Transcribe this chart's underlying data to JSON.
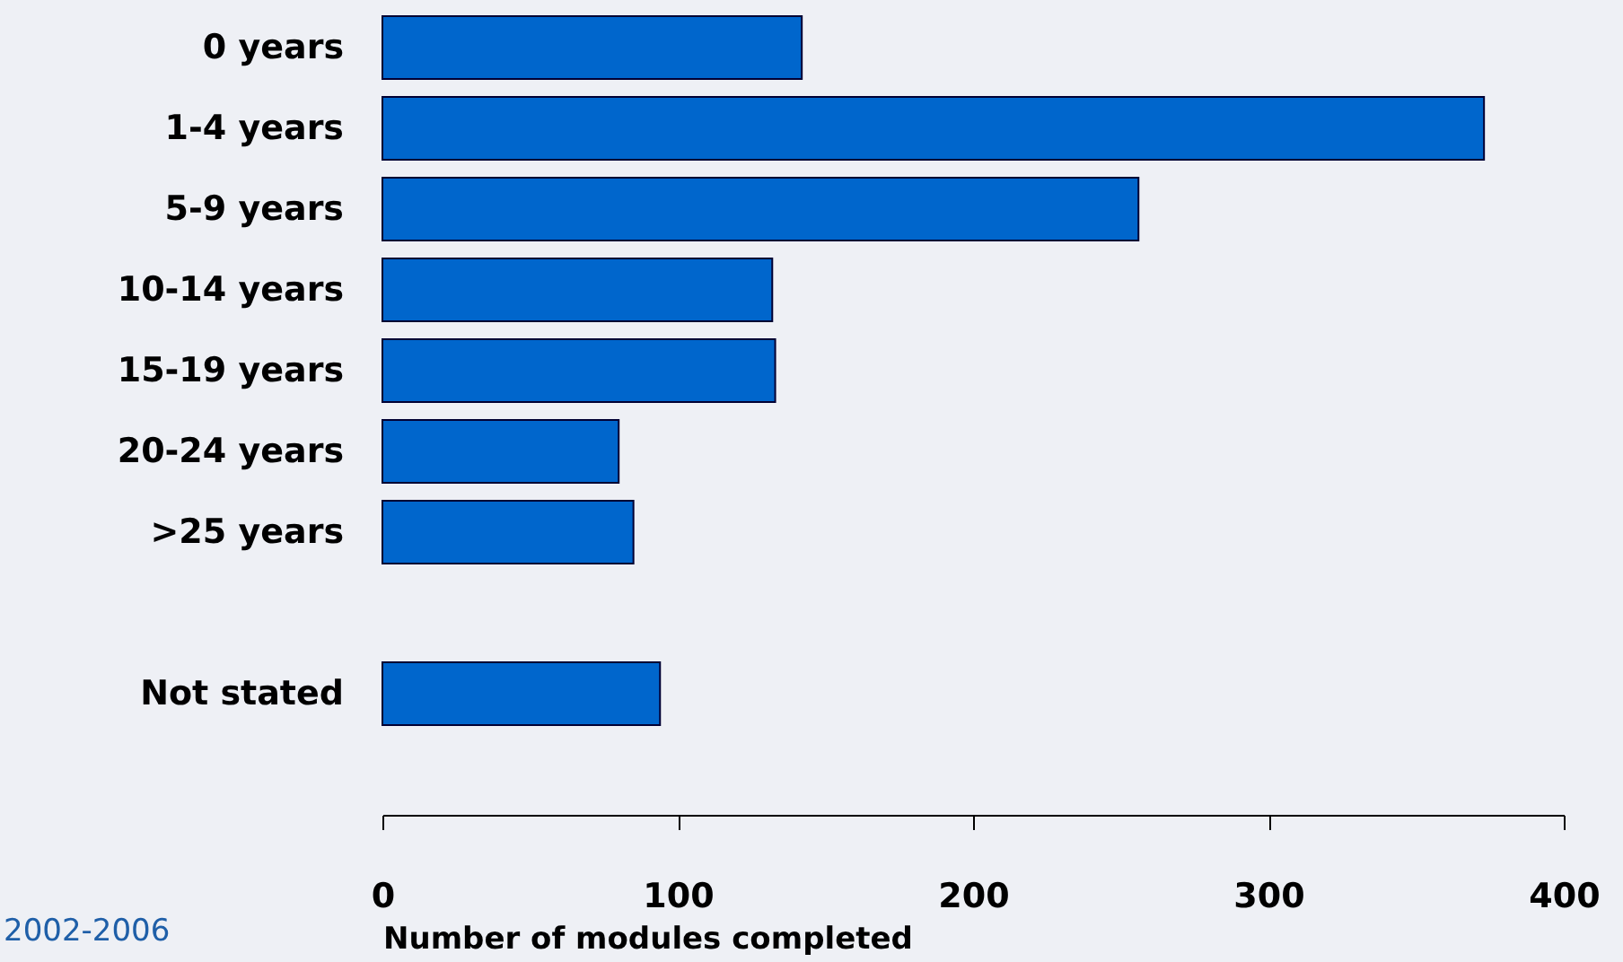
{
  "chart_data": {
    "type": "bar",
    "orientation": "horizontal",
    "xlabel": "Number of modules completed",
    "categories": [
      "0 years",
      "1-4 years",
      "5-9 years",
      "10-14 years",
      "15-19 years",
      "20-24 years",
      ">25 years",
      null,
      "Not stated"
    ],
    "values": [
      142,
      373,
      256,
      132,
      133,
      80,
      85,
      null,
      94
    ],
    "color": "#0066cc",
    "xlim": [
      0,
      400
    ],
    "xticks": [
      0,
      100,
      200,
      300,
      400
    ],
    "grid": false,
    "annotations": [
      "2002-2006"
    ]
  }
}
